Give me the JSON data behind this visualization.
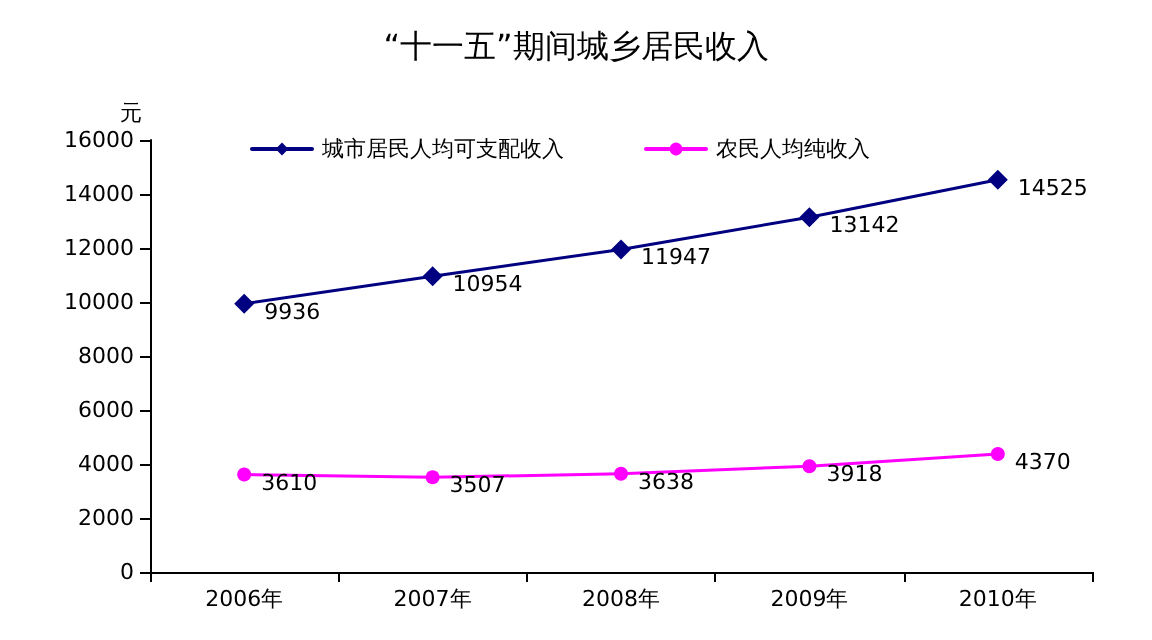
{
  "chart_data": {
    "type": "line",
    "title": "“十一五”期间城乡居民收入",
    "ylabel": "元",
    "categories": [
      "2006年",
      "2007年",
      "2008年",
      "2009年",
      "2010年"
    ],
    "series": [
      {
        "name": "城市居民人均可支配收入",
        "color": "#000080",
        "marker": "diamond",
        "values": [
          9936,
          10954,
          11947,
          13142,
          14525
        ]
      },
      {
        "name": "农民人均纯收入",
        "color": "#ff00ff",
        "marker": "circle",
        "values": [
          3610,
          3507,
          3638,
          3918,
          4370
        ]
      }
    ],
    "ylim": [
      0,
      16000
    ],
    "yticks": [
      0,
      2000,
      4000,
      6000,
      8000,
      10000,
      12000,
      14000,
      16000
    ],
    "grid": false,
    "legend": "top left",
    "data_labels": true,
    "line_style": "solid"
  }
}
